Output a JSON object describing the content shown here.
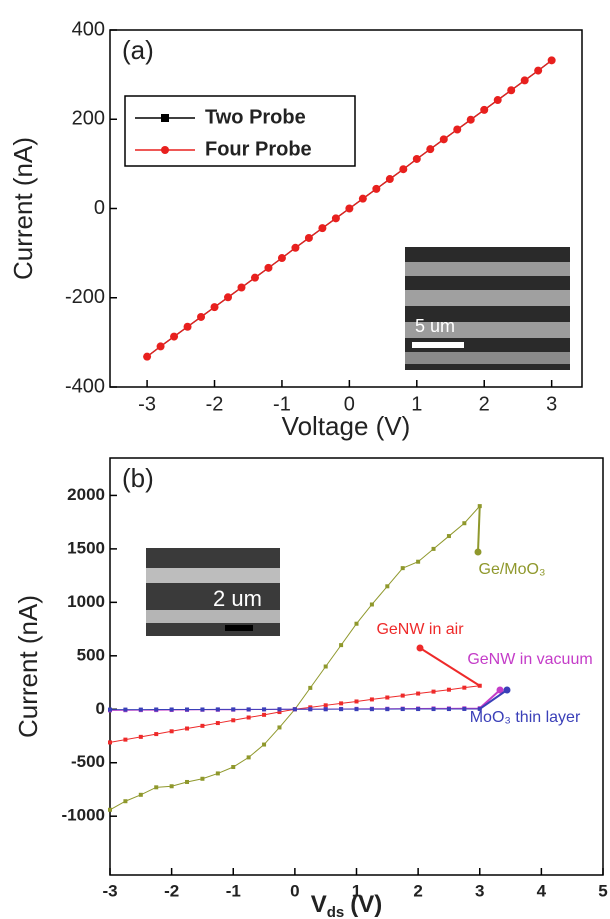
{
  "chart_data": [
    {
      "type": "line",
      "panel_label": "(a)",
      "xlabel": "Voltage (V)",
      "ylabel": "Current (nA)",
      "xlim": [
        -3.55,
        3.45
      ],
      "ylim": [
        -400,
        400
      ],
      "xticks": [
        -3,
        -2,
        -1,
        0,
        1,
        2,
        3
      ],
      "yticks": [
        -400,
        -200,
        0,
        200,
        400
      ],
      "legend": "top-left",
      "inset_scale_label": "5 um",
      "x": [
        -3,
        -2.8,
        -2.6,
        -2.4,
        -2.2,
        -2,
        -1.8,
        -1.6,
        -1.4,
        -1.2,
        -1,
        -0.8,
        -0.6,
        -0.4,
        -0.2,
        0,
        0.2,
        0.4,
        0.6,
        0.8,
        1,
        1.2,
        1.4,
        1.6,
        1.8,
        2,
        2.2,
        2.4,
        2.6,
        2.8,
        3
      ],
      "series": [
        {
          "name": "Two Probe",
          "color": "#000000",
          "marker": "square",
          "values": [
            -332,
            -309,
            -287,
            -265,
            -243,
            -221,
            -199,
            -177,
            -155,
            -133,
            -111,
            -88,
            -66,
            -44,
            -22,
            0,
            22,
            44,
            66,
            88,
            111,
            133,
            155,
            177,
            199,
            221,
            243,
            265,
            287,
            309,
            332
          ]
        },
        {
          "name": "Four Probe",
          "color": "#e8201e",
          "marker": "circle",
          "values": [
            -332,
            -309,
            -287,
            -265,
            -243,
            -221,
            -199,
            -177,
            -155,
            -133,
            -111,
            -88,
            -66,
            -44,
            -22,
            0,
            22,
            44,
            66,
            88,
            111,
            133,
            155,
            177,
            199,
            221,
            243,
            265,
            287,
            309,
            332
          ]
        }
      ]
    },
    {
      "type": "line",
      "panel_label": "(b)",
      "xlabel": [
        "V",
        "ds",
        "(V)"
      ],
      "ylabel": "Current (nA)",
      "xlim": [
        -3,
        5
      ],
      "ylim": [
        -1550,
        2350
      ],
      "xticks": [
        -3,
        -2,
        -1,
        0,
        1,
        2,
        3,
        4,
        5
      ],
      "yticks": [
        -1000,
        -500,
        0,
        500,
        1000,
        1500,
        2000
      ],
      "inset_scale_label": "2 um",
      "x": [
        -3,
        -2.75,
        -2.5,
        -2.25,
        -2,
        -1.75,
        -1.5,
        -1.25,
        -1,
        -0.75,
        -0.5,
        -0.25,
        0,
        0.25,
        0.5,
        0.75,
        1,
        1.25,
        1.5,
        1.75,
        2,
        2.25,
        2.5,
        2.75,
        3
      ],
      "series": [
        {
          "name": "Ge/MoO₃",
          "color": "#8f982c",
          "values": [
            -940,
            -860,
            -800,
            -730,
            -720,
            -680,
            -650,
            -600,
            -540,
            -450,
            -330,
            -170,
            0,
            200,
            400,
            600,
            800,
            980,
            1150,
            1320,
            1380,
            1500,
            1620,
            1740,
            1900
          ]
        },
        {
          "name": "GeNW in air",
          "color": "#ee2a2a",
          "values": [
            -310,
            -284,
            -258,
            -232,
            -206,
            -180,
            -155,
            -129,
            -103,
            -77,
            -52,
            -26,
            0,
            18,
            37,
            55,
            73,
            92,
            110,
            128,
            147,
            165,
            183,
            202,
            220
          ]
        },
        {
          "name": "GeNW in vacuum",
          "color": "#c43cc8",
          "values": [
            -10,
            -9,
            -8,
            -8,
            -7,
            -6,
            -5,
            -5,
            -4,
            -3,
            -2,
            -1,
            0,
            1,
            2,
            3,
            4,
            5,
            5,
            6,
            7,
            8,
            8,
            9,
            10
          ]
        },
        {
          "name": "MoO₃ thin layer",
          "color": "#3a3fb8",
          "values": [
            -3,
            -3,
            -3,
            -2,
            -2,
            -2,
            -2,
            -1,
            -1,
            -1,
            -1,
            0,
            0,
            0,
            0,
            1,
            1,
            1,
            1,
            2,
            2,
            2,
            2,
            3,
            3
          ]
        }
      ]
    }
  ]
}
